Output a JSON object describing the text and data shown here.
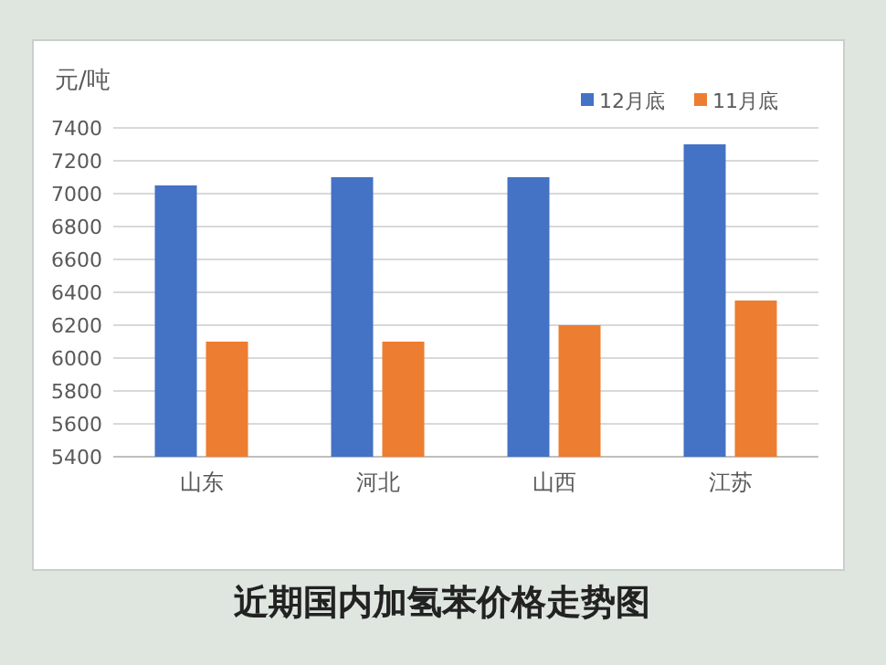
{
  "chart_data": {
    "type": "bar",
    "title": "近期国内加氢苯价格走势图",
    "ylabel": "元/吨",
    "categories": [
      "山东",
      "河北",
      "山西",
      "江苏"
    ],
    "series": [
      {
        "name": "12月底",
        "color": "#4472c4",
        "values": [
          7050,
          7100,
          7100,
          7300
        ]
      },
      {
        "name": "11月底",
        "color": "#ed7d31",
        "values": [
          6100,
          6100,
          6200,
          6350
        ]
      }
    ],
    "ylim": [
      5400,
      7400
    ],
    "yticks": [
      5400,
      5600,
      5800,
      6000,
      6200,
      6400,
      6600,
      6800,
      7000,
      7200,
      7400
    ],
    "grid": "y",
    "legend": "top right"
  }
}
